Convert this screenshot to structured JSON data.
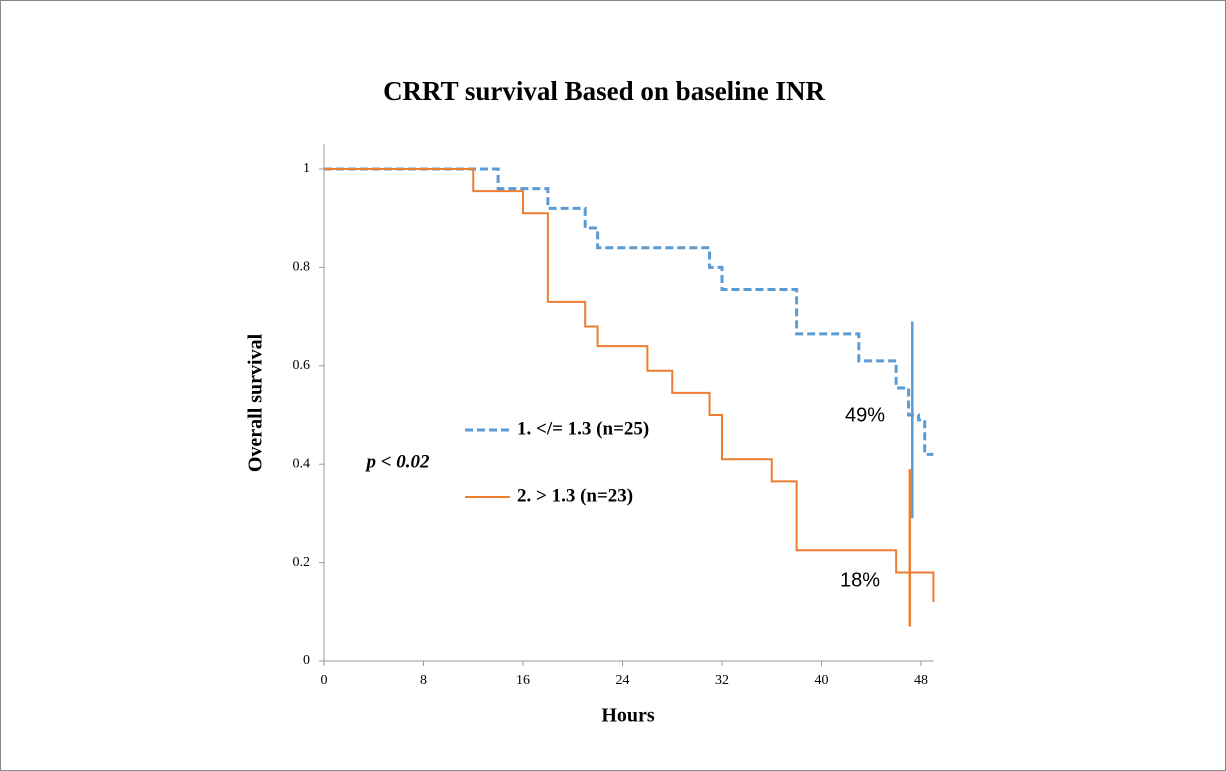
{
  "chart_data": {
    "type": "line",
    "step": "post",
    "title": "CRRT survival Based on baseline INR",
    "x_label": "Hours",
    "y_label": "Overall survival",
    "xlim": [
      0,
      49
    ],
    "ylim": [
      0,
      1.05
    ],
    "xticks": [
      0,
      8,
      16,
      24,
      32,
      40,
      48
    ],
    "yticks": [
      0,
      0.2,
      0.4,
      0.6,
      0.8,
      1
    ],
    "grid": false,
    "series": [
      {
        "name": "1. </= 1.3 (n=25)",
        "color": "#5b9bd5",
        "dash": true,
        "x": [
          0,
          14,
          18,
          21,
          22,
          31,
          32,
          38,
          43,
          46,
          47,
          47.8,
          48.3,
          49
        ],
        "values": [
          1,
          0.96,
          0.92,
          0.88,
          0.84,
          0.8,
          0.755,
          0.665,
          0.61,
          0.555,
          0.5,
          0.49,
          0.42,
          0.42
        ],
        "censor_marks": [
          {
            "x": 47.3,
            "range": [
              0.29,
              0.69
            ]
          }
        ]
      },
      {
        "name": "2. > 1.3 (n=23)",
        "color": "#ed7d31",
        "dash": false,
        "x": [
          0,
          12,
          16,
          18,
          21,
          22,
          26,
          28,
          31,
          32,
          36,
          38,
          46,
          49
        ],
        "values": [
          1,
          0.955,
          0.91,
          0.73,
          0.68,
          0.64,
          0.59,
          0.545,
          0.5,
          0.41,
          0.365,
          0.225,
          0.18,
          0.12
        ],
        "censor_marks": [
          {
            "x": 47.1,
            "range": [
              0.07,
              0.39
            ]
          }
        ]
      }
    ],
    "annotations": [
      "49%",
      "18%",
      "p < 0.02"
    ]
  }
}
